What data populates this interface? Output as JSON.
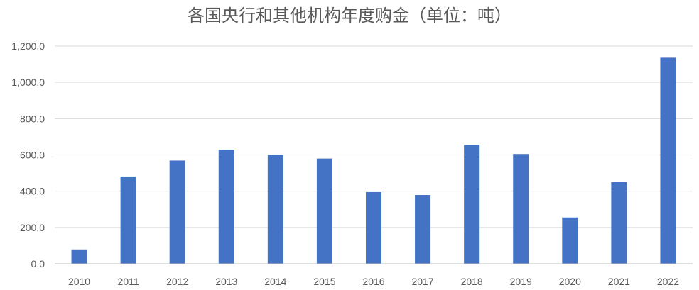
{
  "chart_data": {
    "type": "bar",
    "title": "各国央行和其他机构年度购金（单位：吨）",
    "xlabel": "",
    "ylabel": "",
    "categories": [
      "2010",
      "2011",
      "2012",
      "2013",
      "2014",
      "2015",
      "2016",
      "2017",
      "2018",
      "2019",
      "2020",
      "2021",
      "2022"
    ],
    "values": [
      79,
      481,
      569,
      629,
      601,
      580,
      395,
      379,
      656,
      605,
      255,
      450,
      1136
    ],
    "ylim": [
      0,
      1200
    ],
    "yticks": [
      0,
      200,
      400,
      600,
      800,
      1000,
      1200
    ],
    "ytick_labels": [
      "0.0",
      "200.0",
      "400.0",
      "600.0",
      "800.0",
      "1,000.0",
      "1,200.0"
    ],
    "grid": true,
    "legend": "none",
    "colors": {
      "bar": "#4472c4"
    }
  }
}
